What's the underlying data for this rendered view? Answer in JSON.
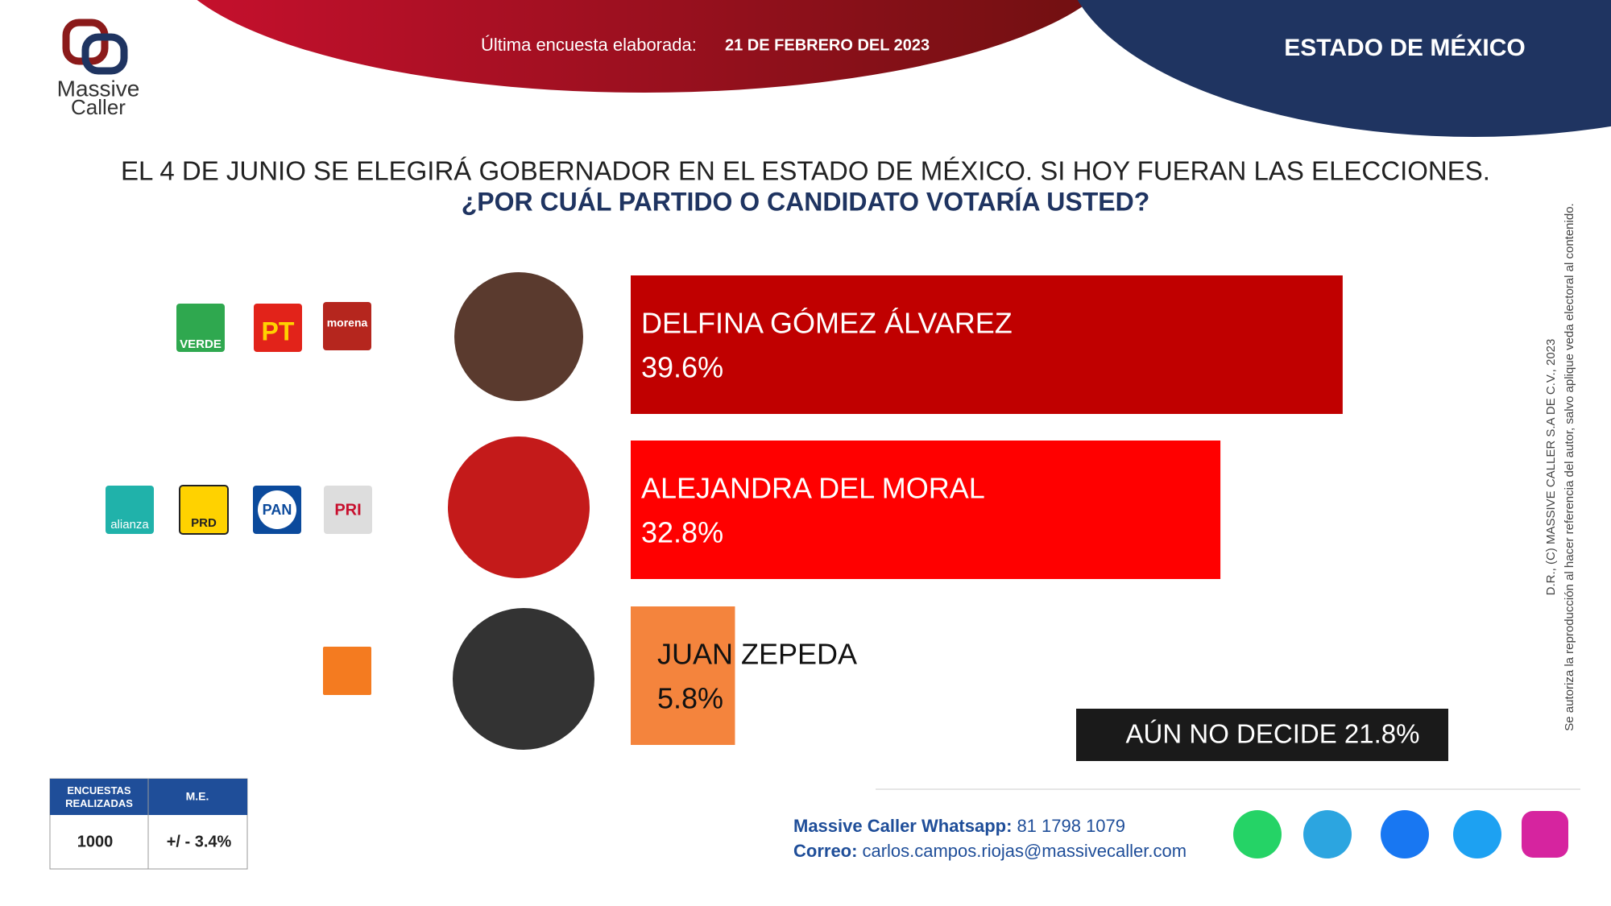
{
  "header": {
    "date_label": "Última encuesta elaborada:",
    "date": "21 DE FEBRERO DEL 2023",
    "region": "ESTADO DE MÉXICO",
    "logo_line1": "Massive",
    "logo_line2": "Caller"
  },
  "parties": {
    "row1": [
      "VERDE",
      "PT",
      "morena"
    ],
    "row2": [
      "alianza",
      "PRD",
      "PAN",
      "PRI"
    ]
  },
  "chart_data": {
    "type": "hbar",
    "title": "EL 4 DE JUNIO SE ELEGIRÁ GOBERNADOR EN EL ESTADO DE MÉXICO. SI HOY FUERAN LAS ELECCIONES.",
    "subtitle": "¿POR CUÁL PARTIDO O CANDIDATO VOTARÍA USTED?",
    "categories": [
      "DELFINA GÓMEZ ÁLVAREZ",
      "ALEJANDRA DEL MORAL",
      "JUAN ZEPEDA"
    ],
    "values": [
      39.6,
      32.8,
      5.8
    ],
    "value_labels": [
      "39.6%",
      "32.8%",
      "5.8%"
    ],
    "colors": [
      "#c00000",
      "#ff0000",
      "#f4843d"
    ],
    "xlim": [
      0,
      50
    ],
    "annotation": "AÚN NO DECIDE 21.8%"
  },
  "table": {
    "headers": [
      "ENCUESTAS REALIZADAS",
      "M.E."
    ],
    "row": [
      "1000",
      "+/ - 3.4%"
    ]
  },
  "footer": {
    "whatsapp_label": "Massive Caller Whatsapp:",
    "whatsapp": "81 1798 1079",
    "email_label": "Correo:",
    "email": "carlos.campos.riojas@massivecaller.com",
    "copyright1": "D.R., (C) MASSIVE CALLER S.A DE C.V., 2023",
    "copyright2": "Se autoriza la reproducción al hacer referencia del autor, salvo aplique veda electoral al contenido."
  }
}
